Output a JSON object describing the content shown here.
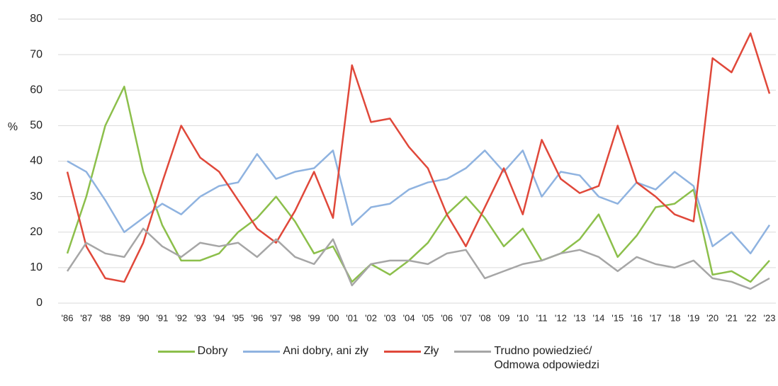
{
  "chart_data": {
    "type": "line",
    "y_label": "%",
    "categories": [
      "'86",
      "'87",
      "'88",
      "'89",
      "'90",
      "'91",
      "'92",
      "'93",
      "'94",
      "'95",
      "'96",
      "'97",
      "'98",
      "'99",
      "'00",
      "'01",
      "'02",
      "'03",
      "'04",
      "'05",
      "'06",
      "'07",
      "'08",
      "'09",
      "'10",
      "'11",
      "'12",
      "'13",
      "'14",
      "'15",
      "'16",
      "'17",
      "'18",
      "'19",
      "'20",
      "'21",
      "'22",
      "'23"
    ],
    "series": [
      {
        "name": "Dobry",
        "color": "#8cbf4b",
        "values": [
          14,
          30,
          50,
          61,
          37,
          22,
          12,
          12,
          14,
          20,
          24,
          30,
          23,
          14,
          16,
          6,
          11,
          8,
          12,
          17,
          25,
          30,
          24,
          16,
          21,
          12,
          14,
          18,
          25,
          13,
          19,
          27,
          28,
          32,
          8,
          9,
          6,
          12
        ]
      },
      {
        "name": "Ani dobry, ani zły",
        "color": "#8fb3e0",
        "values": [
          40,
          37,
          29,
          20,
          24,
          28,
          25,
          30,
          33,
          34,
          42,
          35,
          37,
          38,
          43,
          22,
          27,
          28,
          32,
          34,
          35,
          38,
          43,
          37,
          43,
          30,
          37,
          36,
          30,
          28,
          34,
          32,
          37,
          33,
          16,
          20,
          14,
          22
        ]
      },
      {
        "name": "Zły",
        "color": "#e0483a",
        "values": [
          37,
          16,
          7,
          6,
          17,
          34,
          50,
          41,
          37,
          29,
          21,
          17,
          26,
          37,
          24,
          67,
          51,
          52,
          44,
          38,
          25,
          16,
          27,
          38,
          25,
          46,
          35,
          31,
          33,
          50,
          34,
          30,
          25,
          23,
          69,
          65,
          76,
          59
        ]
      },
      {
        "name": "Trudno powiedzieć/ Odmowa odpowiedzi",
        "color": "#a6a6a6",
        "values": [
          9,
          17,
          14,
          13,
          21,
          16,
          13,
          17,
          16,
          17,
          13,
          18,
          13,
          11,
          18,
          5,
          11,
          12,
          12,
          11,
          14,
          15,
          7,
          9,
          11,
          12,
          14,
          15,
          13,
          9,
          13,
          11,
          10,
          12,
          7,
          6,
          4,
          7
        ]
      }
    ],
    "ylim": [
      0,
      80
    ],
    "yticks": [
      0,
      10,
      20,
      30,
      40,
      50,
      60,
      70,
      80
    ],
    "grid": true
  }
}
